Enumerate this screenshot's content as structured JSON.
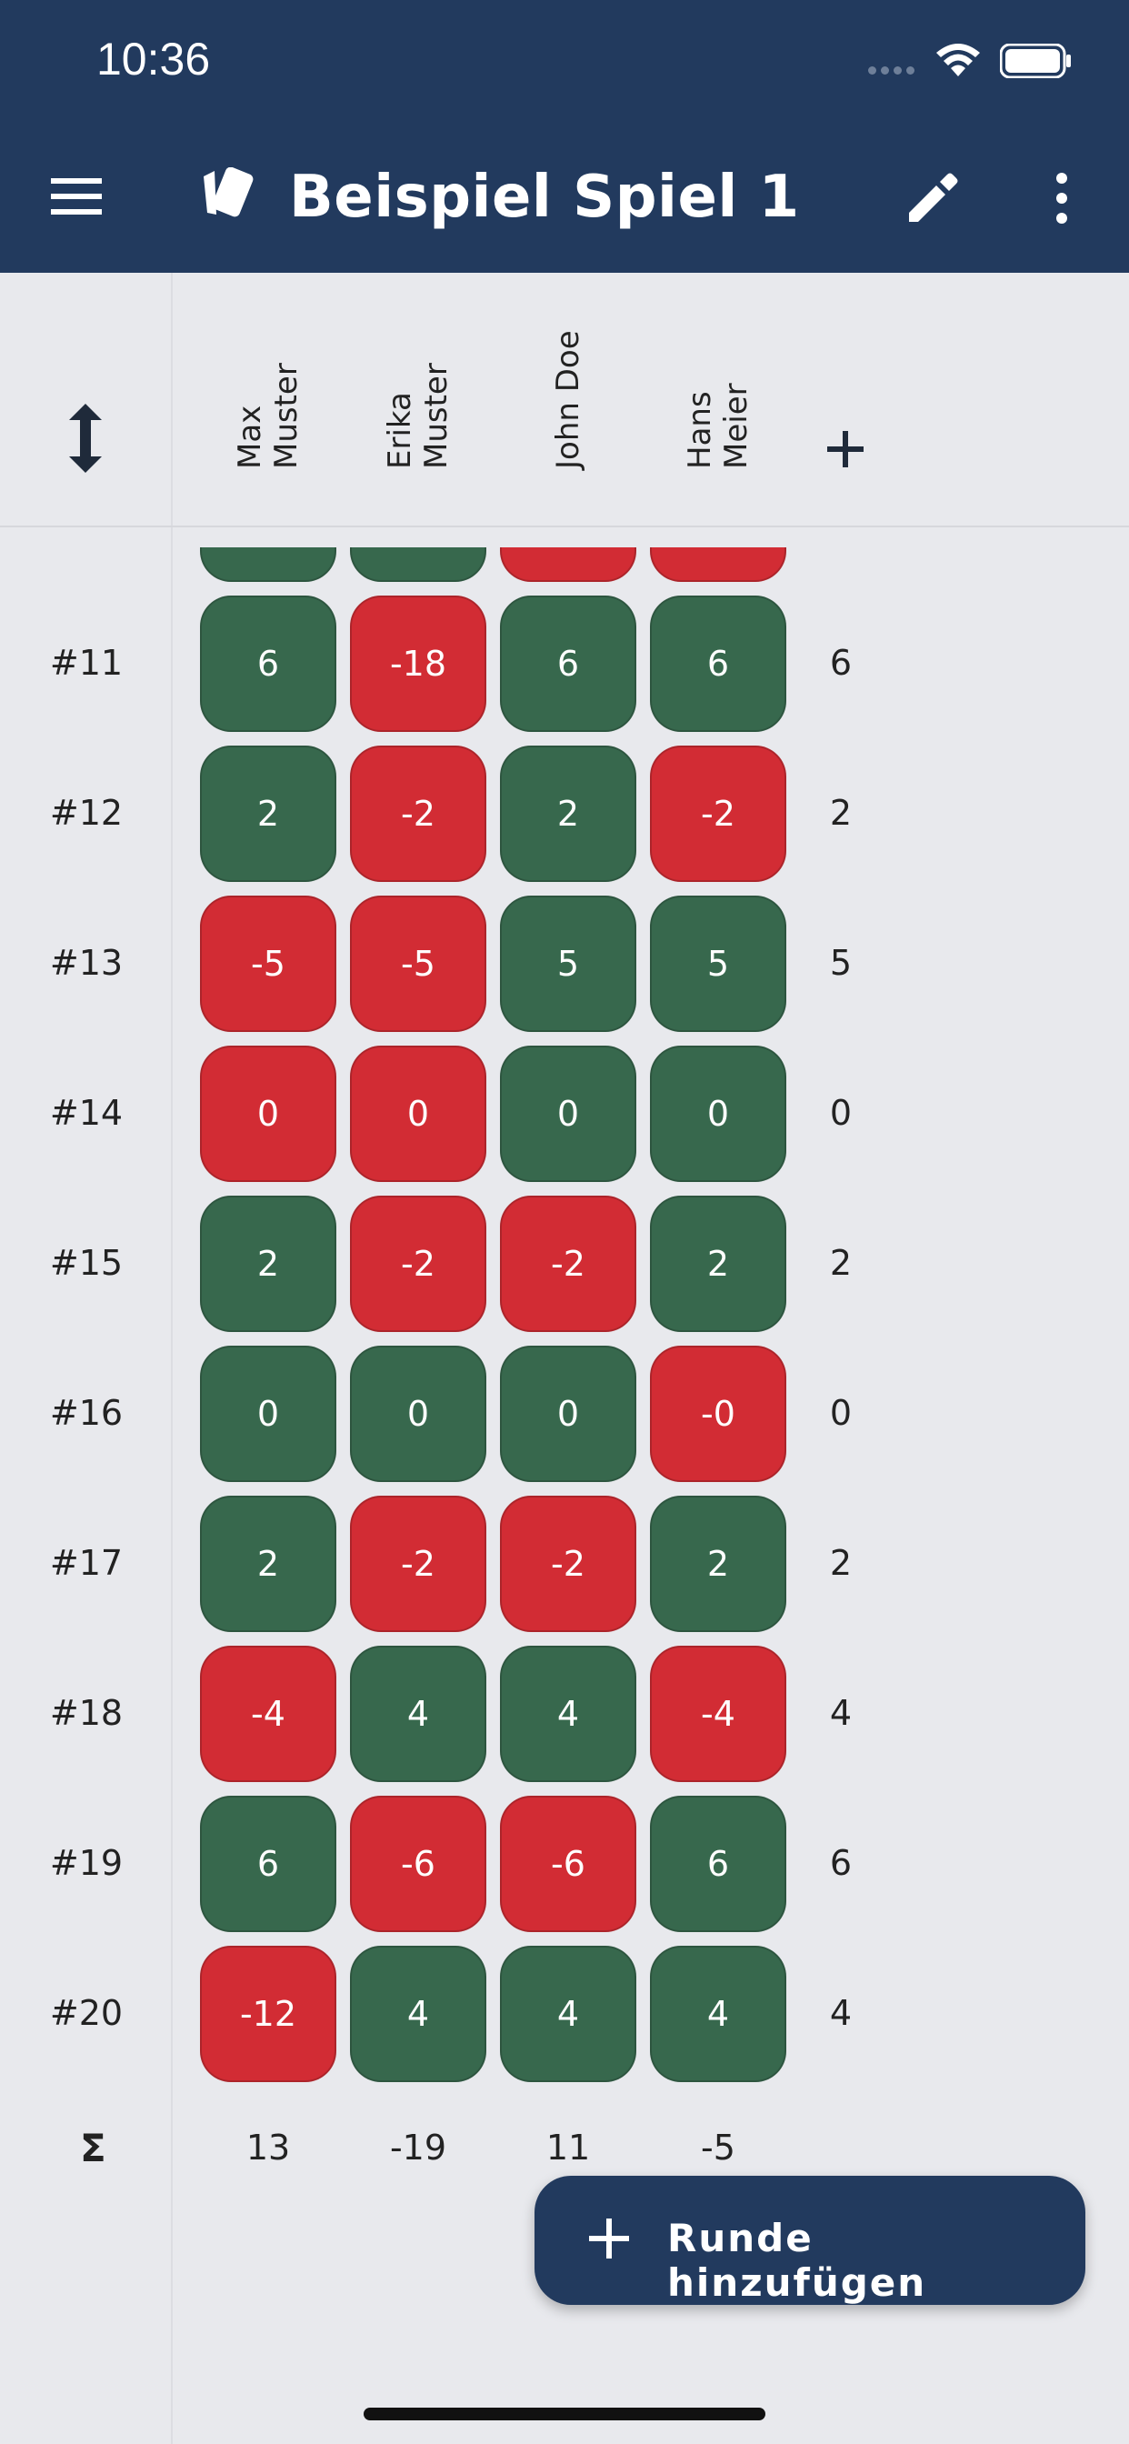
{
  "status_bar": {
    "time": "10:36"
  },
  "app_bar": {
    "title": "Beispiel Spiel 1"
  },
  "players": [
    "Max\nMuster",
    "Erika\nMuster",
    "John Doe",
    "Hans\nMeier"
  ],
  "players_lines": [
    [
      "Max",
      "Muster"
    ],
    [
      "Erika",
      "Muster"
    ],
    [
      "John Doe"
    ],
    [
      "Hans",
      "Meier"
    ]
  ],
  "rounds": [
    {
      "label": "#11",
      "values": [
        "6",
        "-18",
        "6",
        "6"
      ],
      "results": [
        "win",
        "lose",
        "win",
        "win"
      ],
      "score": "6"
    },
    {
      "label": "#12",
      "values": [
        "2",
        "-2",
        "2",
        "-2"
      ],
      "results": [
        "win",
        "lose",
        "win",
        "lose"
      ],
      "score": "2"
    },
    {
      "label": "#13",
      "values": [
        "-5",
        "-5",
        "5",
        "5"
      ],
      "results": [
        "lose",
        "lose",
        "win",
        "win"
      ],
      "score": "5"
    },
    {
      "label": "#14",
      "values": [
        "0",
        "0",
        "0",
        "0"
      ],
      "results": [
        "lose",
        "lose",
        "win",
        "win"
      ],
      "score": "0"
    },
    {
      "label": "#15",
      "values": [
        "2",
        "-2",
        "-2",
        "2"
      ],
      "results": [
        "win",
        "lose",
        "lose",
        "win"
      ],
      "score": "2"
    },
    {
      "label": "#16",
      "values": [
        "0",
        "0",
        "0",
        "-0"
      ],
      "results": [
        "win",
        "win",
        "win",
        "lose"
      ],
      "score": "0"
    },
    {
      "label": "#17",
      "values": [
        "2",
        "-2",
        "-2",
        "2"
      ],
      "results": [
        "win",
        "lose",
        "lose",
        "win"
      ],
      "score": "2"
    },
    {
      "label": "#18",
      "values": [
        "-4",
        "4",
        "4",
        "-4"
      ],
      "results": [
        "lose",
        "win",
        "win",
        "lose"
      ],
      "score": "4"
    },
    {
      "label": "#19",
      "values": [
        "6",
        "-6",
        "-6",
        "6"
      ],
      "results": [
        "win",
        "lose",
        "lose",
        "win"
      ],
      "score": "6"
    },
    {
      "label": "#20",
      "values": [
        "-12",
        "4",
        "4",
        "4"
      ],
      "results": [
        "lose",
        "win",
        "win",
        "win"
      ],
      "score": "4"
    }
  ],
  "partial_row_results": [
    "win",
    "win",
    "lose",
    "lose"
  ],
  "totals": {
    "label": "Σ",
    "values": [
      "13",
      "-19",
      "11",
      "-5"
    ]
  },
  "fab": {
    "label": "Runde hinzufügen"
  },
  "colors": {
    "primary": "#223a5e",
    "win": "#37684d",
    "lose": "#d22c34",
    "background": "#e8e9ed"
  }
}
